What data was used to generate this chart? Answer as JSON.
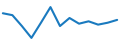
{
  "x": [
    0,
    1,
    2,
    3,
    4,
    5,
    6,
    7,
    8,
    9,
    10,
    11,
    12
  ],
  "y": [
    0.82,
    0.78,
    0.55,
    0.3,
    0.62,
    0.95,
    0.55,
    0.72,
    0.6,
    0.65,
    0.58,
    0.62,
    0.68
  ],
  "line_color": "#1a7abf",
  "linewidth": 1.5,
  "background_color": "#ffffff",
  "ylim": [
    0.15,
    1.1
  ],
  "xlim": [
    -0.3,
    12.3
  ]
}
